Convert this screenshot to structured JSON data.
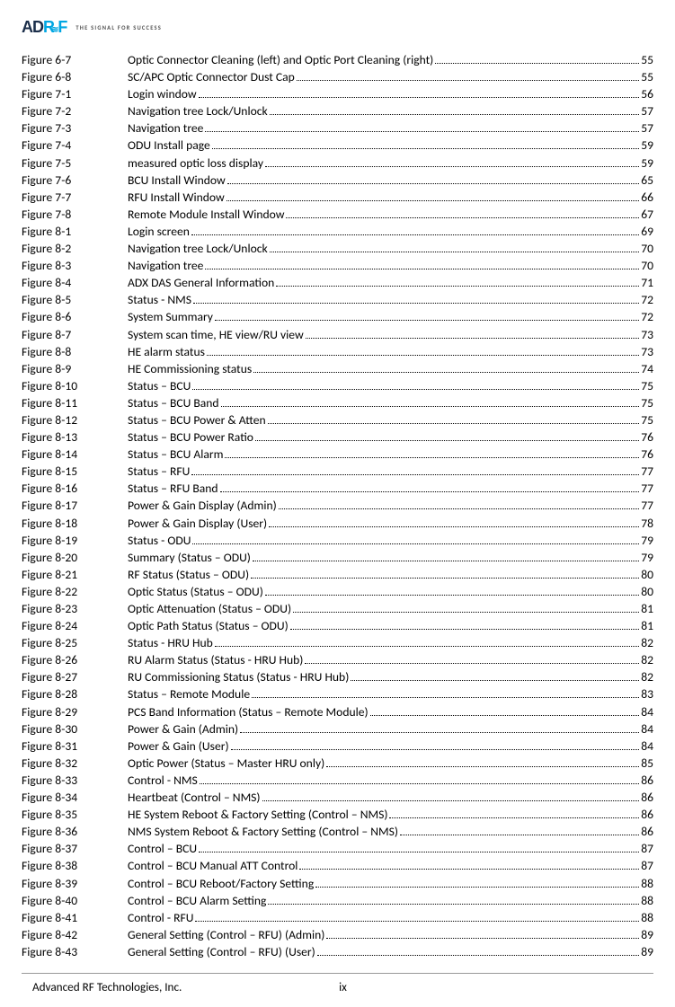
{
  "header": {
    "logo_parts": {
      "a": "A",
      "d": "D",
      "r": "R",
      "f": "F"
    },
    "tagline": "THE SIGNAL FOR SUCCESS"
  },
  "entries": [
    {
      "label": "Figure 6-7",
      "title": "Optic Connector Cleaning (left) and Optic Port Cleaning (right)",
      "page": "55"
    },
    {
      "label": "Figure 6-8",
      "title": "SC/APC Optic Connector Dust Cap",
      "page": "55"
    },
    {
      "label": "Figure 7-1",
      "title": "Login window",
      "page": "56"
    },
    {
      "label": "Figure 7-2",
      "title": "Navigation tree Lock/Unlock",
      "page": "57"
    },
    {
      "label": "Figure 7-3",
      "title": "Navigation tree",
      "page": "57"
    },
    {
      "label": "Figure 7-4",
      "title": "ODU Install page",
      "page": "59"
    },
    {
      "label": "Figure 7-5",
      "title": "measured optic loss display",
      "page": "59"
    },
    {
      "label": "Figure 7-6",
      "title": "BCU Install Window",
      "page": "65"
    },
    {
      "label": "Figure 7-7",
      "title": "RFU Install Window",
      "page": "66"
    },
    {
      "label": "Figure 7-8",
      "title": "Remote Module Install Window",
      "page": "67"
    },
    {
      "label": "Figure 8-1",
      "title": "Login screen",
      "page": "69"
    },
    {
      "label": "Figure 8-2",
      "title": "Navigation tree Lock/Unlock",
      "page": "70"
    },
    {
      "label": "Figure 8-3",
      "title": "Navigation tree",
      "page": "70"
    },
    {
      "label": "Figure 8-4",
      "title": "ADX DAS General Information",
      "page": "71"
    },
    {
      "label": "Figure 8-5",
      "title": "Status - NMS",
      "page": "72"
    },
    {
      "label": "Figure 8-6",
      "title": "System Summary",
      "page": "72"
    },
    {
      "label": "Figure 8-7",
      "title": "System scan time, HE view/RU view",
      "page": "73"
    },
    {
      "label": "Figure 8-8",
      "title": "HE alarm status",
      "page": "73"
    },
    {
      "label": "Figure 8-9",
      "title": "HE Commissioning status",
      "page": "74"
    },
    {
      "label": "Figure 8-10",
      "title": "Status – BCU",
      "page": "75"
    },
    {
      "label": "Figure 8-11",
      "title": "Status – BCU Band",
      "page": "75"
    },
    {
      "label": "Figure 8-12",
      "title": "Status – BCU Power & Atten",
      "page": "75"
    },
    {
      "label": "Figure 8-13",
      "title": "Status – BCU Power Ratio",
      "page": "76"
    },
    {
      "label": "Figure 8-14",
      "title": "Status – BCU Alarm",
      "page": "76"
    },
    {
      "label": "Figure 8-15",
      "title": "Status – RFU",
      "page": "77"
    },
    {
      "label": "Figure 8-16",
      "title": "Status – RFU Band",
      "page": "77"
    },
    {
      "label": "Figure 8-17",
      "title": "Power & Gain Display (Admin)",
      "page": "77"
    },
    {
      "label": "Figure 8-18",
      "title": "Power & Gain Display (User)",
      "page": "78"
    },
    {
      "label": "Figure 8-19",
      "title": "Status - ODU",
      "page": "79"
    },
    {
      "label": "Figure 8-20",
      "title": "Summary (Status – ODU)",
      "page": "79"
    },
    {
      "label": "Figure 8-21",
      "title": "RF Status (Status – ODU)",
      "page": "80"
    },
    {
      "label": "Figure 8-22",
      "title": "Optic Status (Status – ODU)",
      "page": "80"
    },
    {
      "label": "Figure 8-23",
      "title": "Optic Attenuation (Status – ODU)",
      "page": "81"
    },
    {
      "label": "Figure 8-24",
      "title": "Optic Path Status (Status – ODU)",
      "page": "81"
    },
    {
      "label": "Figure 8-25",
      "title": "Status - HRU Hub",
      "page": "82"
    },
    {
      "label": "Figure 8-26",
      "title": "RU Alarm Status (Status - HRU Hub)",
      "page": "82"
    },
    {
      "label": "Figure 8-27",
      "title": "RU Commissioning Status (Status - HRU Hub)",
      "page": "82"
    },
    {
      "label": "Figure 8-28",
      "title": "Status – Remote Module",
      "page": "83"
    },
    {
      "label": "Figure 8-29",
      "title": "PCS Band Information (Status – Remote Module)",
      "page": "84"
    },
    {
      "label": "Figure 8-30",
      "title": "Power & Gain (Admin)",
      "page": "84"
    },
    {
      "label": "Figure 8-31",
      "title": "Power & Gain (User)",
      "page": "84"
    },
    {
      "label": "Figure 8-32",
      "title": "Optic Power (Status – Master HRU only)",
      "page": "85"
    },
    {
      "label": "Figure 8-33",
      "title": "Control - NMS",
      "page": "86"
    },
    {
      "label": "Figure 8-34",
      "title": "Heartbeat (Control – NMS)",
      "page": "86"
    },
    {
      "label": "Figure 8-35",
      "title": "HE System Reboot & Factory Setting (Control – NMS)",
      "page": "86"
    },
    {
      "label": "Figure 8-36",
      "title": "NMS System Reboot & Factory Setting (Control – NMS)",
      "page": "86"
    },
    {
      "label": "Figure 8-37",
      "title": "Control – BCU",
      "page": "87"
    },
    {
      "label": "Figure 8-38",
      "title": "Control – BCU Manual ATT Control",
      "page": "87"
    },
    {
      "label": "Figure 8-39",
      "title": "Control – BCU Reboot/Factory Setting",
      "page": "88"
    },
    {
      "label": "Figure 8-40",
      "title": "Control – BCU Alarm Setting",
      "page": "88"
    },
    {
      "label": "Figure 8-41",
      "title": "Control - RFU",
      "page": "88"
    },
    {
      "label": "Figure 8-42",
      "title": "General Setting (Control – RFU) (Admin)",
      "page": "89"
    },
    {
      "label": "Figure 8-43",
      "title": "General Setting (Control – RFU) (User)",
      "page": "89"
    }
  ],
  "footer": {
    "left": "Advanced RF Technologies, Inc.",
    "center": "ix"
  }
}
